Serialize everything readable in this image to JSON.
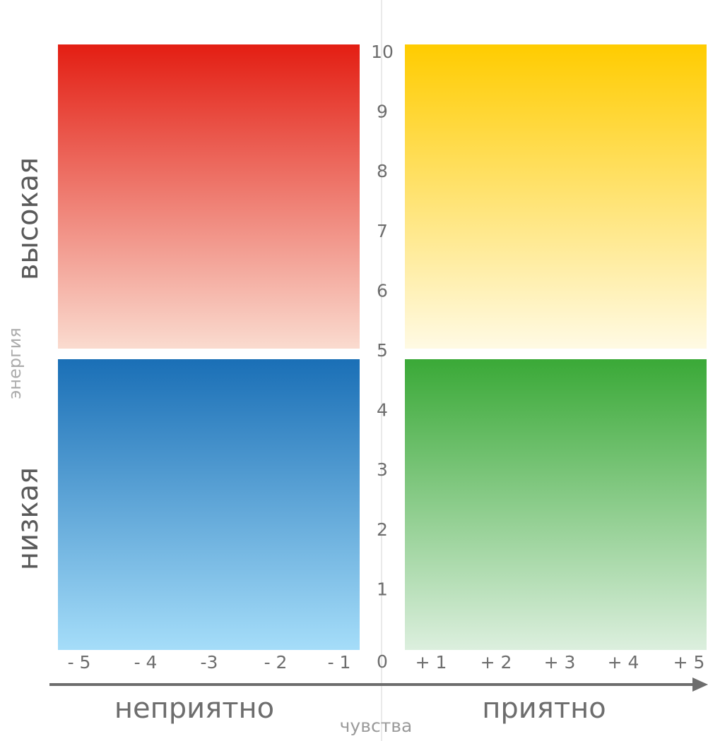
{
  "axis": {
    "energy_title": "энергия",
    "feelings_title": "чувства",
    "high_label": "высокая",
    "low_label": "низкая",
    "unpleasant_label": "неприятно",
    "pleasant_label": "приятно",
    "y_labels": [
      "10",
      "9",
      "8",
      "7",
      "6",
      "5",
      "4",
      "3",
      "2",
      "1",
      "0"
    ],
    "x_labels": [
      "- 5",
      "- 4",
      "-3",
      "- 2",
      "- 1",
      "+ 1",
      "+ 2",
      "+ 3",
      "+ 4",
      "+ 5"
    ]
  }
}
